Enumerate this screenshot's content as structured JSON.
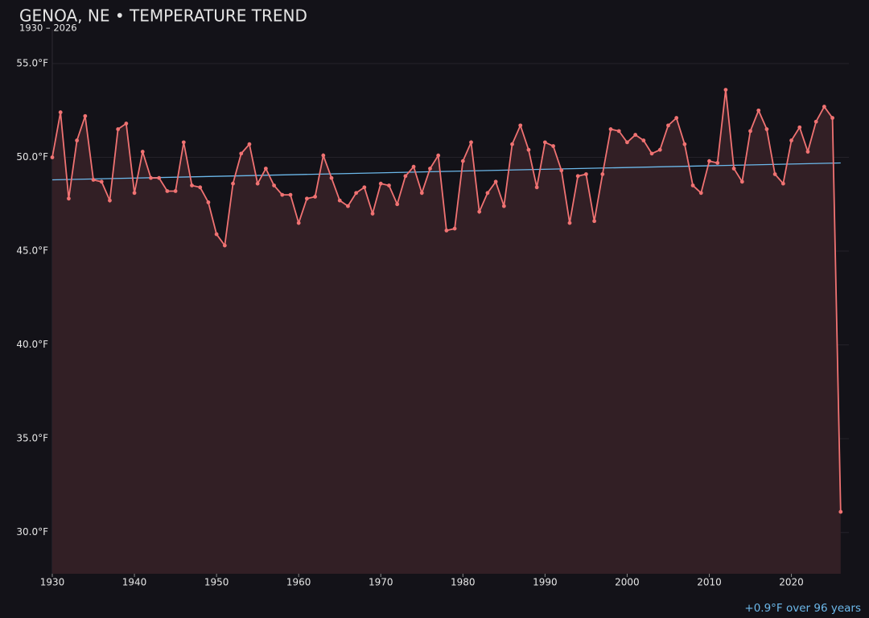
{
  "chart_data": {
    "type": "line",
    "title": "GENOA, NE • TEMPERATURE TREND",
    "subtitle": "1930 – 2026",
    "annotation": "+0.9°F over 96 years",
    "x": [
      1930,
      1931,
      1932,
      1933,
      1934,
      1935,
      1936,
      1937,
      1938,
      1939,
      1940,
      1941,
      1942,
      1943,
      1944,
      1945,
      1946,
      1947,
      1948,
      1949,
      1950,
      1951,
      1952,
      1953,
      1954,
      1955,
      1956,
      1957,
      1958,
      1959,
      1960,
      1961,
      1962,
      1963,
      1964,
      1965,
      1966,
      1967,
      1968,
      1969,
      1970,
      1971,
      1972,
      1973,
      1974,
      1975,
      1976,
      1977,
      1978,
      1979,
      1980,
      1981,
      1982,
      1983,
      1984,
      1985,
      1986,
      1987,
      1988,
      1989,
      1990,
      1991,
      1992,
      1993,
      1994,
      1995,
      1996,
      1997,
      1998,
      1999,
      2000,
      2001,
      2002,
      2003,
      2004,
      2005,
      2006,
      2007,
      2008,
      2009,
      2010,
      2011,
      2012,
      2013,
      2014,
      2015,
      2016,
      2017,
      2018,
      2019,
      2020,
      2021,
      2022,
      2023,
      2024,
      2025,
      2026
    ],
    "series": [
      {
        "color": "#f07272",
        "fill": "#321f25",
        "values": [
          50.0,
          52.4,
          47.8,
          50.9,
          52.2,
          48.8,
          48.7,
          47.7,
          51.5,
          51.8,
          48.1,
          50.3,
          48.9,
          48.9,
          48.2,
          48.2,
          50.8,
          48.5,
          48.4,
          47.6,
          45.9,
          45.3,
          48.6,
          50.2,
          50.7,
          48.6,
          49.4,
          48.5,
          48.0,
          48.0,
          46.5,
          47.8,
          47.9,
          50.1,
          48.9,
          47.7,
          47.4,
          48.1,
          48.4,
          47.0,
          48.6,
          48.5,
          47.5,
          49.0,
          49.5,
          48.1,
          49.4,
          50.1,
          46.1,
          46.2,
          49.8,
          50.8,
          47.1,
          48.1,
          48.7,
          47.4,
          50.7,
          51.7,
          50.4,
          48.4,
          50.8,
          50.6,
          49.3,
          46.5,
          49.0,
          49.1,
          46.6,
          49.1,
          51.5,
          51.4,
          50.8,
          51.2,
          50.9,
          50.2,
          50.4,
          51.7,
          52.1,
          50.7,
          48.5,
          48.1,
          49.8,
          49.7,
          53.6,
          49.4,
          48.7,
          51.4,
          52.5,
          51.5,
          49.1,
          48.6,
          50.9,
          51.6,
          50.3,
          51.9,
          52.7,
          52.1,
          31.1
        ]
      }
    ],
    "trend": {
      "color": "#6cb8ea",
      "x": [
        1930,
        2026
      ],
      "values": [
        48.8,
        49.7
      ]
    },
    "xlim": [
      1930,
      2027
    ],
    "xticks": [
      1930,
      1940,
      1950,
      1960,
      1970,
      1980,
      1990,
      2000,
      2010,
      2020
    ],
    "ylim": [
      27.8,
      56.8
    ],
    "yticks": [
      {
        "value": 30,
        "label": "30.0°F"
      },
      {
        "value": 35,
        "label": "35.0°F"
      },
      {
        "value": 40,
        "label": "40.0°F"
      },
      {
        "value": 45,
        "label": "45.0°F"
      },
      {
        "value": 50,
        "label": "50.0°F"
      },
      {
        "value": 55,
        "label": "55.0°F"
      }
    ],
    "grid": true
  }
}
